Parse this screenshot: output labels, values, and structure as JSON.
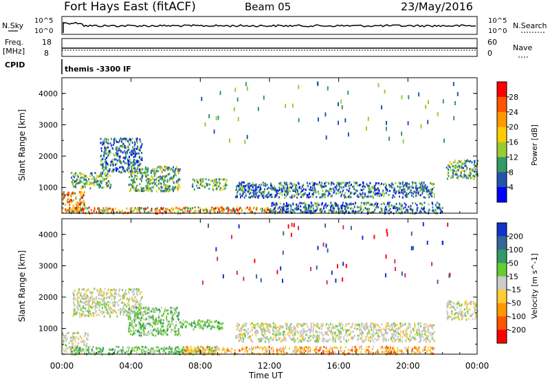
{
  "header": {
    "station": "Fort Hays East (fitACF)",
    "beam": "Beam 05",
    "date": "23/May/2016"
  },
  "status_panels": {
    "nsky": {
      "label": "N.Sky",
      "ticks": [
        "10^5",
        "10^0"
      ],
      "right_label": "N.Search",
      "right_ticks": [
        "10^5",
        "10^0"
      ]
    },
    "freq": {
      "label_line1": "Freq.",
      "label_line2": "[MHz]",
      "ticks": [
        "18",
        "8"
      ],
      "right_label": "Nave",
      "right_ticks": [
        "60",
        "0"
      ]
    },
    "cpid": {
      "label": "CPID",
      "program": "themis -3300 IF"
    }
  },
  "chart_data": [
    {
      "type": "heatmap",
      "name": "power-panel",
      "ylabel": "Slant Range [km]",
      "xlabel": "",
      "ylim": [
        180,
        4500
      ],
      "xlim": [
        0,
        24
      ],
      "yticks": [
        1000,
        2000,
        3000,
        4000
      ],
      "xticks_hours": [
        0,
        4,
        8,
        12,
        16,
        20,
        24
      ],
      "colorbar": {
        "label": "Power [dB]",
        "ticks": [
          "28",
          "24",
          "20",
          "16",
          "12",
          "8",
          "4"
        ],
        "colors": [
          "#ff0000",
          "#ff5500",
          "#ff9900",
          "#ffcc00",
          "#99cc33",
          "#339966",
          "#2255aa",
          "#0000ff"
        ]
      },
      "regions": [
        {
          "t0": 0.0,
          "t1": 1.3,
          "r0": 200,
          "r1": 900,
          "level": "high"
        },
        {
          "t0": 0.5,
          "t1": 2.8,
          "r0": 1000,
          "r1": 1500,
          "level": "mid"
        },
        {
          "t0": 2.2,
          "t1": 4.6,
          "r0": 1500,
          "r1": 2600,
          "level": "low"
        },
        {
          "t0": 3.8,
          "t1": 6.8,
          "r0": 900,
          "r1": 1700,
          "level": "mid"
        },
        {
          "t0": 0.2,
          "t1": 12.5,
          "r0": 200,
          "r1": 400,
          "level": "high"
        },
        {
          "t0": 7.5,
          "t1": 9.5,
          "r0": 950,
          "r1": 1300,
          "level": "mid"
        },
        {
          "t0": 10.0,
          "t1": 21.5,
          "r0": 700,
          "r1": 1200,
          "level": "low"
        },
        {
          "t0": 12.0,
          "t1": 22.0,
          "r0": 200,
          "r1": 550,
          "level": "low"
        },
        {
          "t0": 22.2,
          "t1": 24.0,
          "r0": 1300,
          "r1": 1900,
          "level": "mid"
        }
      ]
    },
    {
      "type": "heatmap",
      "name": "velocity-panel",
      "ylabel": "Slant Range [km]",
      "xlabel": "Time UT",
      "ylim": [
        180,
        4500
      ],
      "xlim": [
        0,
        24
      ],
      "yticks": [
        1000,
        2000,
        3000,
        4000
      ],
      "xticks": [
        "00:00",
        "04:00",
        "08:00",
        "12:00",
        "16:00",
        "20:00",
        "00:00"
      ],
      "colorbar": {
        "label": "Velocity [m s^-1]",
        "ticks": [
          "200",
          "100",
          "50",
          "15",
          "-15",
          "-50",
          "-100",
          "-200"
        ],
        "colors": [
          "#1133cc",
          "#336699",
          "#339966",
          "#66cc33",
          "#cccccc",
          "#ffcc33",
          "#ff9900",
          "#ff5500",
          "#ff0000"
        ]
      },
      "regions": [
        {
          "t0": 0.0,
          "t1": 1.5,
          "r0": 200,
          "r1": 900,
          "level": "gray"
        },
        {
          "t0": 0.6,
          "t1": 4.6,
          "r0": 1400,
          "r1": 2300,
          "level": "gray"
        },
        {
          "t0": 3.8,
          "t1": 6.8,
          "r0": 800,
          "r1": 1700,
          "level": "green"
        },
        {
          "t0": 6.8,
          "t1": 9.3,
          "r0": 1000,
          "r1": 1300,
          "level": "green"
        },
        {
          "t0": 0.5,
          "t1": 9.0,
          "r0": 200,
          "r1": 450,
          "level": "green"
        },
        {
          "t0": 7.0,
          "t1": 21.5,
          "r0": 200,
          "r1": 450,
          "level": "orange"
        },
        {
          "t0": 10.0,
          "t1": 21.5,
          "r0": 600,
          "r1": 1200,
          "level": "gray"
        },
        {
          "t0": 22.2,
          "t1": 24.0,
          "r0": 1300,
          "r1": 1900,
          "level": "gray"
        }
      ]
    }
  ]
}
